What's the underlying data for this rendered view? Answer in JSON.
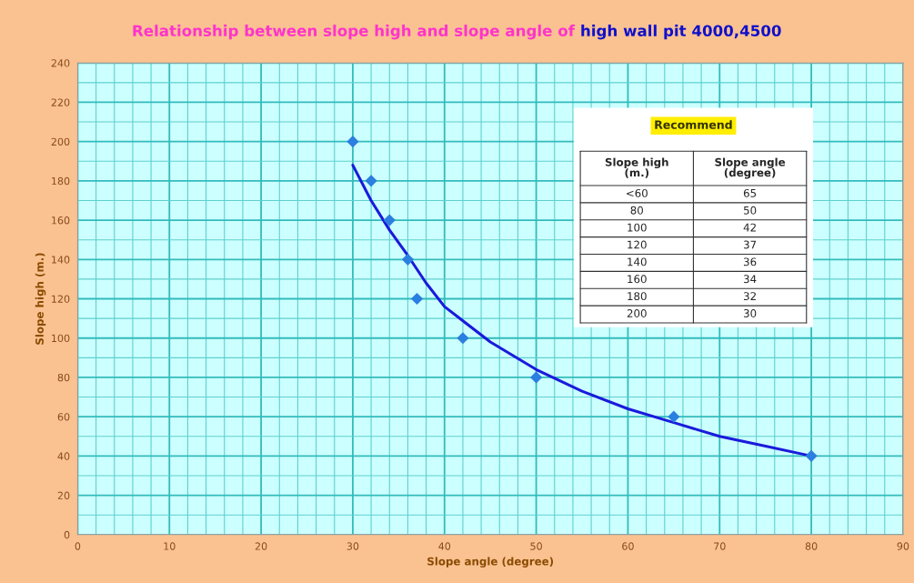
{
  "chart_data": {
    "type": "scatter",
    "title": "Relationship between slope high and slope angle of",
    "subtitle": "high wall pit 4000,4500",
    "xlabel": "Slope angle (degree)",
    "ylabel": "Slope high (m.)",
    "series": [
      {
        "color": "#2a7fe0",
        "marker": "diamond",
        "x": [
          30,
          32,
          34,
          36,
          37,
          42,
          50,
          65,
          80
        ],
        "values": [
          200,
          180,
          160,
          140,
          120,
          100,
          80,
          60,
          40
        ]
      },
      {
        "type": "line",
        "color": "#1a1adc",
        "marker": "none",
        "line_style": "solid",
        "x": [
          30,
          32,
          34,
          36,
          38,
          40,
          45,
          50,
          55,
          60,
          65,
          70,
          75,
          80
        ],
        "values": [
          188,
          170,
          155,
          142,
          128,
          116,
          98,
          84,
          73,
          64,
          57,
          50,
          45,
          40
        ]
      }
    ],
    "annotations": [
      "Recommend",
      "Slope high\n(m.)",
      "Slope angle\n(degree)",
      "<60",
      "65",
      "80",
      "50",
      "100",
      "42",
      "120",
      "37",
      "140",
      "36",
      "160",
      "34",
      "180",
      "32",
      "200",
      "30"
    ],
    "xlim": [
      0,
      90
    ],
    "xticks": [
      0,
      {
        "value": 2,
        "label": null
      },
      {
        "value": 4,
        "label": null
      },
      {
        "value": 6,
        "label": null
      },
      {
        "value": 8,
        "label": null
      },
      10,
      {
        "value": 12,
        "label": null
      },
      {
        "value": 14,
        "label": null
      },
      {
        "value": 16,
        "label": null
      },
      {
        "value": 18,
        "label": null
      },
      20,
      {
        "value": 22,
        "label": null
      },
      {
        "value": 24,
        "label": null
      },
      {
        "value": 26,
        "label": null
      },
      {
        "value": 28,
        "label": null
      },
      30,
      {
        "value": 32,
        "label": null
      },
      {
        "value": 34,
        "label": null
      },
      {
        "value": 36,
        "label": null
      },
      {
        "value": 38,
        "label": null
      },
      40,
      {
        "value": 42,
        "label": null
      },
      {
        "value": 44,
        "label": null
      },
      {
        "value": 46,
        "label": null
      },
      {
        "value": 48,
        "label": null
      },
      50,
      {
        "value": 52,
        "label": null
      },
      {
        "value": 54,
        "label": null
      },
      {
        "value": 56,
        "label": null
      },
      {
        "value": 58,
        "label": null
      },
      60,
      {
        "value": 62,
        "label": null
      },
      {
        "value": 64,
        "label": null
      },
      {
        "value": 66,
        "label": null
      },
      {
        "value": 68,
        "label": null
      },
      70,
      {
        "value": 72,
        "label": null
      },
      {
        "value": 74,
        "label": null
      },
      {
        "value": 76,
        "label": null
      },
      {
        "value": 78,
        "label": null
      },
      80,
      {
        "value": 82,
        "label": null
      },
      {
        "value": 84,
        "label": null
      },
      {
        "value": 86,
        "label": null
      },
      {
        "value": 88,
        "label": null
      },
      90
    ],
    "ylim": [
      0,
      240
    ],
    "yticks": [
      0,
      {
        "value": 10,
        "label": null
      },
      20,
      {
        "value": 30,
        "label": null
      },
      40,
      {
        "value": 50,
        "label": null
      },
      60,
      {
        "value": 70,
        "label": null
      },
      80,
      {
        "value": 90,
        "label": null
      },
      100,
      {
        "value": 110,
        "label": null
      },
      120,
      {
        "value": 130,
        "label": null
      },
      140,
      {
        "value": 150,
        "label": null
      },
      160,
      {
        "value": 170,
        "label": null
      },
      180,
      {
        "value": 190,
        "label": null
      },
      200,
      {
        "value": 210,
        "label": null
      },
      220,
      {
        "value": 230,
        "label": null
      },
      240
    ],
    "grid": true,
    "legend": false
  }
}
